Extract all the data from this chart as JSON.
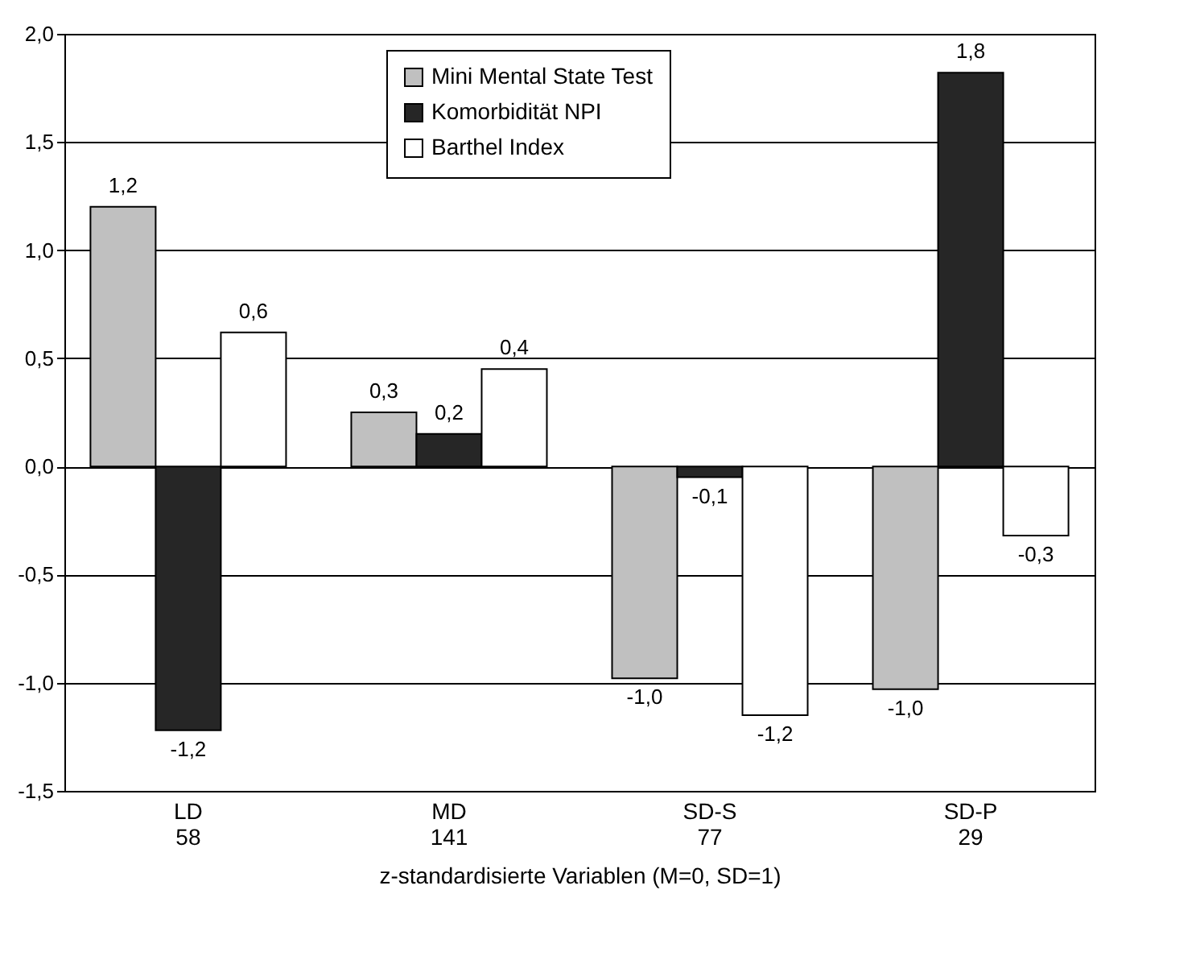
{
  "chart_data": {
    "type": "bar",
    "xlabel": "z-standardisierte Variablen (M=0, SD=1)",
    "categories": [
      "LD\n58",
      "MD\n141",
      "SD-S\n77",
      "SD-P\n29"
    ],
    "series": [
      {
        "name": "Mini Mental State Test",
        "color": "#c0c0c0",
        "values": [
          1.2,
          0.25,
          -0.98,
          -1.03
        ],
        "value_labels": [
          "1,2",
          "0,3",
          "-1,0",
          "-1,0"
        ]
      },
      {
        "name": "Komorbidität NPI",
        "color": "#262626",
        "values": [
          -1.22,
          0.15,
          -0.05,
          1.82
        ],
        "value_labels": [
          "-1,2",
          "0,2",
          "-0,1",
          "1,8"
        ]
      },
      {
        "name": "Barthel Index",
        "color": "#ffffff",
        "values": [
          0.62,
          0.45,
          -1.15,
          -0.32
        ],
        "value_labels": [
          "0,6",
          "0,4",
          "-1,2",
          "-0,3"
        ]
      }
    ],
    "ylim": [
      -1.5,
      2.0
    ],
    "yticks": [
      {
        "value": -1.5,
        "label": "-1,5"
      },
      {
        "value": -1.0,
        "label": "-1,0"
      },
      {
        "value": -0.5,
        "label": "-0,5"
      },
      {
        "value": 0,
        "label": "0,0"
      },
      {
        "value": 0.5,
        "label": "0,5"
      },
      {
        "value": 1.0,
        "label": "1,0"
      },
      {
        "value": 1.5,
        "label": "1,5"
      },
      {
        "value": 2.0,
        "label": "2,0"
      }
    ],
    "grid": "y",
    "legend": "top"
  }
}
